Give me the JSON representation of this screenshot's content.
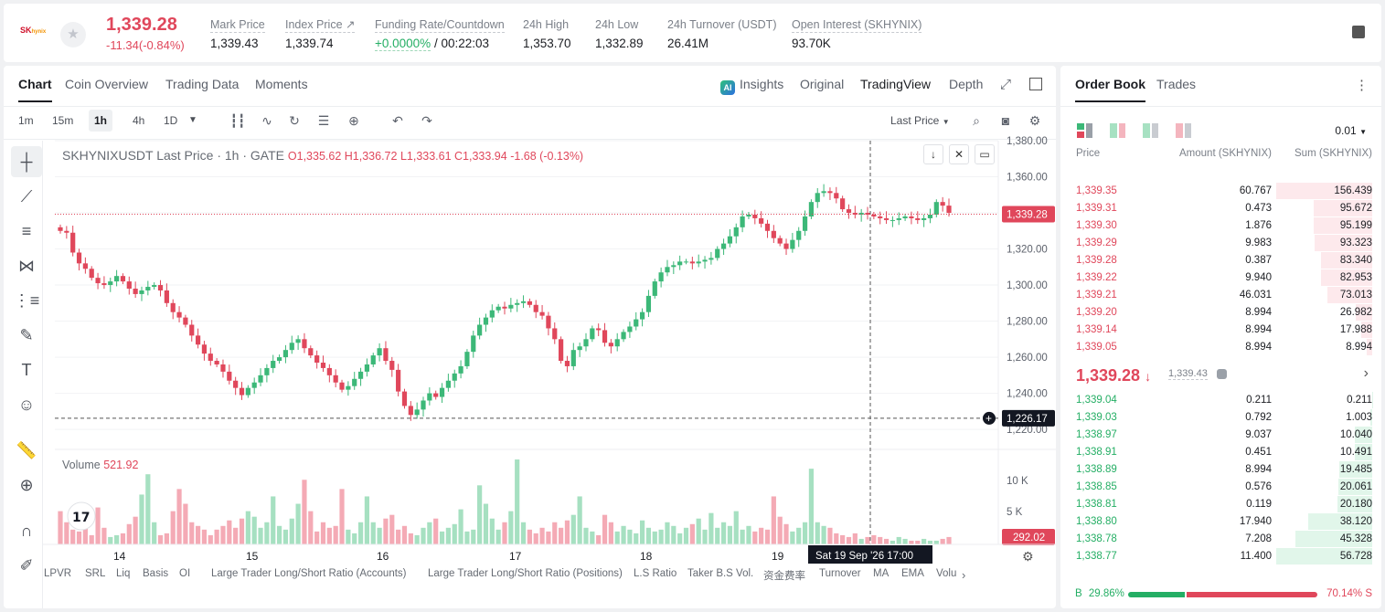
{
  "ticker": {
    "logo_text": "SK",
    "logo_sub": "hynix",
    "last_price": "1,339.28",
    "change": "-11.34(-0.84%)",
    "stats": [
      {
        "label": "Mark Price",
        "value": "1,339.43"
      },
      {
        "label": "Index Price ↗",
        "value": "1,339.74"
      },
      {
        "label": "Funding Rate/Countdown",
        "value_green": "+0.0000%",
        "value": " / 00:22:03"
      },
      {
        "label": "24h High",
        "value": "1,353.70"
      },
      {
        "label": "24h Low",
        "value": "1,332.89"
      },
      {
        "label": "24h Turnover (USDT)",
        "value": "26.41M"
      },
      {
        "label": "Open Interest (SKHYNIX)",
        "value": "93.70K"
      }
    ]
  },
  "chart_tabs": [
    "Chart",
    "Coin Overview",
    "Trading Data",
    "Moments"
  ],
  "view_tabs": {
    "insights": "Insights",
    "original": "Original",
    "tradingview": "TradingView",
    "depth": "Depth",
    "ai_badge": "AI"
  },
  "timeframes": [
    "1m",
    "15m",
    "1h",
    "4h",
    "1D"
  ],
  "price_type": "Last Price",
  "chart_header": {
    "symbol": "SKHYNIXUSDT Last Price · 1h · GATE",
    "o": "O1,335.62",
    "h": "H1,336.72",
    "l": "L1,333.61",
    "c": "C1,333.94",
    "chg": "-1.68 (-0.13%)"
  },
  "volume_header": {
    "label": "Volume",
    "value": "521.92"
  },
  "chart_data": {
    "type": "candlestick",
    "title": "SKHYNIXUSDT Last Price · 1h · GATE",
    "x_labels": [
      "14",
      "15",
      "16",
      "17",
      "18",
      "19"
    ],
    "y_ticks": [
      "1,380.00",
      "1,360.00",
      "1,340.00",
      "1,320.00",
      "1,300.00",
      "1,280.00",
      "1,260.00",
      "1,240.00",
      "1,220.00"
    ],
    "y_range": [
      1216,
      1380
    ],
    "volume_ticks": [
      "10 K",
      "5 K"
    ],
    "current_price_label": "1,339.28",
    "crosshair_price_label": "1,226.17",
    "crosshair_time_label": "Sat 19 Sep '26   17:00",
    "volume_current_label": "292.02",
    "close_series": [
      1330,
      1329,
      1318,
      1312,
      1309,
      1304,
      1301,
      1300,
      1302,
      1305,
      1302,
      1298,
      1295,
      1297,
      1299,
      1300,
      1297,
      1290,
      1285,
      1282,
      1278,
      1272,
      1267,
      1262,
      1258,
      1256,
      1252,
      1247,
      1243,
      1239,
      1243,
      1246,
      1250,
      1254,
      1258,
      1260,
      1264,
      1268,
      1270,
      1265,
      1261,
      1257,
      1254,
      1250,
      1246,
      1242,
      1244,
      1248,
      1252,
      1256,
      1261,
      1265,
      1258,
      1253,
      1241,
      1233,
      1228,
      1231,
      1236,
      1240,
      1238,
      1243,
      1247,
      1251,
      1255,
      1263,
      1272,
      1278,
      1282,
      1286,
      1288,
      1287,
      1289,
      1290,
      1291,
      1289,
      1285,
      1283,
      1276,
      1270,
      1258,
      1255,
      1264,
      1266,
      1270,
      1276,
      1275,
      1268,
      1266,
      1270,
      1274,
      1277,
      1281,
      1285,
      1294,
      1302,
      1307,
      1310,
      1311,
      1313,
      1313,
      1312,
      1313,
      1314,
      1315,
      1320,
      1323,
      1327,
      1332,
      1338,
      1339,
      1337,
      1334,
      1330,
      1326,
      1323,
      1320,
      1325,
      1330,
      1338,
      1346,
      1351,
      1352,
      1351,
      1348,
      1342,
      1340,
      1339,
      1340,
      1339,
      1338,
      1337,
      1336,
      1336,
      1337,
      1338,
      1337,
      1336,
      1337,
      1339,
      1346,
      1344,
      1340
    ],
    "volume_series": [
      18,
      12,
      8,
      7,
      9,
      5,
      20,
      9,
      4,
      5,
      6,
      11,
      15,
      27,
      38,
      12,
      5,
      6,
      18,
      30,
      22,
      12,
      10,
      8,
      5,
      8,
      10,
      13,
      9,
      14,
      18,
      15,
      9,
      12,
      26,
      10,
      8,
      14,
      22,
      35,
      18,
      7,
      12,
      9,
      10,
      30,
      8,
      6,
      12,
      26,
      12,
      9,
      14,
      16,
      8,
      10,
      6,
      5,
      9,
      12,
      14,
      7,
      9,
      11,
      19,
      7,
      8,
      32,
      22,
      14,
      8,
      12,
      18,
      46,
      12,
      8,
      6,
      9,
      7,
      12,
      9,
      13,
      16,
      26,
      9,
      7,
      5,
      16,
      12,
      7,
      10,
      8,
      6,
      13,
      9,
      7,
      8,
      12,
      10,
      6,
      9,
      11,
      14,
      8,
      17,
      9,
      12,
      10,
      18,
      8,
      10,
      7,
      9,
      8,
      26,
      15,
      11,
      7,
      9,
      12,
      41,
      12,
      10,
      9,
      6,
      5,
      4,
      6,
      3,
      4,
      5,
      4,
      3,
      2,
      4,
      3,
      2,
      2,
      3,
      2,
      2,
      3,
      4
    ]
  },
  "bottom_indicators": [
    "LPVR",
    "SRL",
    "Liq",
    "Basis",
    "OI",
    "Large Trader Long/Short Ratio (Accounts)",
    "Large Trader Long/Short Ratio (Positions)",
    "L.S Ratio",
    "Taker B.S Vol.",
    "资金费率",
    "Turnover",
    "MA",
    "EMA",
    "Volu"
  ],
  "orderbook": {
    "tabs": [
      "Order Book",
      "Trades"
    ],
    "precision": "0.01",
    "headers": [
      "Price",
      "Amount (SKHYNIX)",
      "Sum (SKHYNIX)"
    ],
    "asks": [
      {
        "p": "1,339.35",
        "a": "60.767",
        "s": "156.439",
        "depth": 1.0
      },
      {
        "p": "1,339.31",
        "a": "0.473",
        "s": "95.672",
        "depth": 0.61
      },
      {
        "p": "1,339.30",
        "a": "1.876",
        "s": "95.199",
        "depth": 0.61
      },
      {
        "p": "1,339.29",
        "a": "9.983",
        "s": "93.323",
        "depth": 0.6
      },
      {
        "p": "1,339.28",
        "a": "0.387",
        "s": "83.340",
        "depth": 0.53
      },
      {
        "p": "1,339.22",
        "a": "9.940",
        "s": "82.953",
        "depth": 0.53
      },
      {
        "p": "1,339.21",
        "a": "46.031",
        "s": "73.013",
        "depth": 0.47
      },
      {
        "p": "1,339.20",
        "a": "8.994",
        "s": "26.982",
        "depth": 0.17
      },
      {
        "p": "1,339.14",
        "a": "8.994",
        "s": "17.988",
        "depth": 0.11
      },
      {
        "p": "1,339.05",
        "a": "8.994",
        "s": "8.994",
        "depth": 0.06
      }
    ],
    "mid_price": "1,339.28",
    "mid_arrow": "↓",
    "mid_mark": "1,339.43",
    "bids": [
      {
        "p": "1,339.04",
        "a": "0.211",
        "s": "0.211",
        "depth": 0.004
      },
      {
        "p": "1,339.03",
        "a": "0.792",
        "s": "1.003",
        "depth": 0.02
      },
      {
        "p": "1,338.97",
        "a": "9.037",
        "s": "10.040",
        "depth": 0.18
      },
      {
        "p": "1,338.91",
        "a": "0.451",
        "s": "10.491",
        "depth": 0.18
      },
      {
        "p": "1,338.89",
        "a": "8.994",
        "s": "19.485",
        "depth": 0.34
      },
      {
        "p": "1,338.85",
        "a": "0.576",
        "s": "20.061",
        "depth": 0.35
      },
      {
        "p": "1,338.81",
        "a": "0.119",
        "s": "20.180",
        "depth": 0.36
      },
      {
        "p": "1,338.80",
        "a": "17.940",
        "s": "38.120",
        "depth": 0.67
      },
      {
        "p": "1,338.78",
        "a": "7.208",
        "s": "45.328",
        "depth": 0.8
      },
      {
        "p": "1,338.77",
        "a": "11.400",
        "s": "56.728",
        "depth": 1.0
      }
    ],
    "buy_label": "B",
    "buy_pct": "29.86%",
    "sell_pct": "70.14%",
    "sell_label": "S",
    "buy_ratio": 0.2986
  }
}
